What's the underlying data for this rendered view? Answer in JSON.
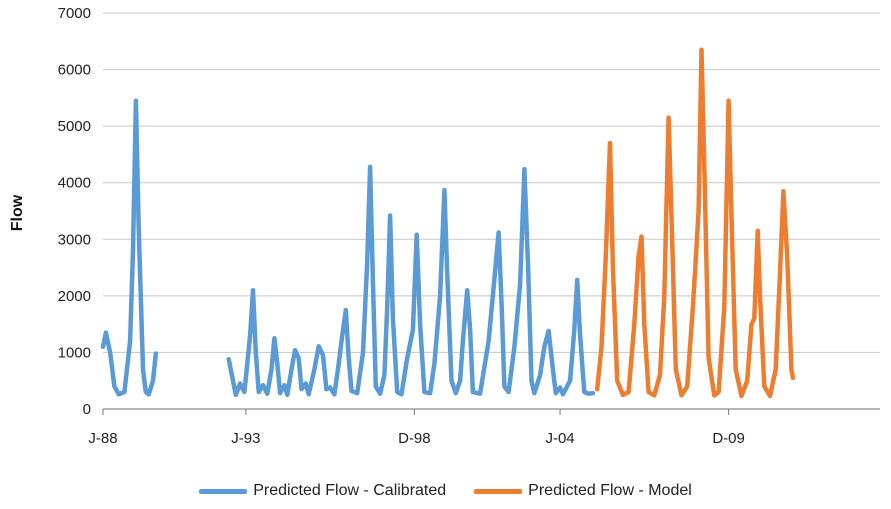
{
  "chart_data": {
    "type": "line",
    "title": "",
    "xlabel": "",
    "ylabel": "Flow",
    "ylim": [
      0,
      7000
    ],
    "yticks": [
      0,
      1000,
      2000,
      3000,
      4000,
      5000,
      6000,
      7000
    ],
    "xlim": [
      1988.0,
      2015.2
    ],
    "xticks": [
      {
        "label": "J-88",
        "x": 1988.0
      },
      {
        "label": "J-93",
        "x": 1993.0
      },
      {
        "label": "D-98",
        "x": 1998.9
      },
      {
        "label": "J-04",
        "x": 2004.0
      },
      {
        "label": "D-09",
        "x": 2009.9
      }
    ],
    "grid": "horizontal",
    "legend_position": "bottom",
    "series": [
      {
        "name": "Predicted Flow - Calibrated",
        "color": "#5b9bd5",
        "segments": [
          [
            [
              1988.0,
              1100
            ],
            [
              1988.1,
              1350
            ],
            [
              1988.25,
              1000
            ],
            [
              1988.4,
              400
            ],
            [
              1988.55,
              260
            ],
            [
              1988.75,
              300
            ],
            [
              1988.95,
              1200
            ],
            [
              1989.05,
              2800
            ],
            [
              1989.15,
              5450
            ],
            [
              1989.25,
              3200
            ],
            [
              1989.4,
              700
            ],
            [
              1989.5,
              300
            ],
            [
              1989.6,
              260
            ],
            [
              1989.75,
              500
            ],
            [
              1989.85,
              980
            ]
          ],
          [
            [
              1992.4,
              880
            ],
            [
              1992.55,
              500
            ],
            [
              1992.65,
              250
            ],
            [
              1992.8,
              450
            ],
            [
              1992.95,
              300
            ],
            [
              1993.05,
              800
            ],
            [
              1993.15,
              1300
            ],
            [
              1993.25,
              2100
            ],
            [
              1993.35,
              1000
            ],
            [
              1993.45,
              300
            ],
            [
              1993.6,
              420
            ],
            [
              1993.75,
              270
            ],
            [
              1993.9,
              700
            ],
            [
              1994.0,
              1250
            ],
            [
              1994.1,
              800
            ],
            [
              1994.2,
              280
            ],
            [
              1994.35,
              420
            ],
            [
              1994.45,
              250
            ],
            [
              1994.6,
              700
            ],
            [
              1994.72,
              1040
            ],
            [
              1994.85,
              900
            ],
            [
              1994.95,
              350
            ],
            [
              1995.1,
              450
            ],
            [
              1995.2,
              260
            ],
            [
              1995.4,
              700
            ],
            [
              1995.55,
              1110
            ],
            [
              1995.7,
              950
            ],
            [
              1995.82,
              350
            ],
            [
              1995.95,
              380
            ],
            [
              1996.1,
              260
            ],
            [
              1996.25,
              800
            ],
            [
              1996.35,
              1200
            ],
            [
              1996.5,
              1750
            ],
            [
              1996.6,
              900
            ],
            [
              1996.7,
              320
            ],
            [
              1996.9,
              280
            ],
            [
              1997.1,
              1000
            ],
            [
              1997.25,
              2600
            ],
            [
              1997.35,
              4280
            ],
            [
              1997.45,
              2200
            ],
            [
              1997.55,
              400
            ],
            [
              1997.7,
              270
            ],
            [
              1997.85,
              600
            ],
            [
              1997.95,
              1800
            ],
            [
              1998.05,
              3420
            ],
            [
              1998.15,
              1600
            ],
            [
              1998.3,
              300
            ],
            [
              1998.45,
              260
            ],
            [
              1998.65,
              900
            ],
            [
              1998.85,
              1400
            ],
            [
              1998.98,
              3080
            ],
            [
              1999.1,
              1500
            ],
            [
              1999.25,
              300
            ],
            [
              1999.45,
              280
            ],
            [
              1999.6,
              800
            ],
            [
              1999.8,
              2000
            ],
            [
              1999.95,
              3870
            ],
            [
              2000.05,
              2400
            ],
            [
              2000.2,
              500
            ],
            [
              2000.35,
              280
            ],
            [
              2000.5,
              500
            ],
            [
              2000.6,
              1200
            ],
            [
              2000.75,
              2100
            ],
            [
              2000.85,
              1400
            ],
            [
              2000.95,
              300
            ],
            [
              2001.2,
              270
            ],
            [
              2001.5,
              1200
            ],
            [
              2001.7,
              2300
            ],
            [
              2001.85,
              3120
            ],
            [
              2001.95,
              1900
            ],
            [
              2002.05,
              400
            ],
            [
              2002.2,
              300
            ],
            [
              2002.4,
              1100
            ],
            [
              2002.6,
              2200
            ],
            [
              2002.75,
              4240
            ],
            [
              2002.88,
              2500
            ],
            [
              2003.0,
              500
            ],
            [
              2003.1,
              280
            ],
            [
              2003.3,
              600
            ],
            [
              2003.45,
              1100
            ],
            [
              2003.6,
              1380
            ],
            [
              2003.75,
              700
            ],
            [
              2003.85,
              280
            ],
            [
              2004.0,
              380
            ],
            [
              2004.1,
              260
            ],
            [
              2004.35,
              500
            ],
            [
              2004.5,
              1400
            ],
            [
              2004.6,
              2280
            ],
            [
              2004.7,
              1300
            ],
            [
              2004.85,
              300
            ],
            [
              2005.0,
              270
            ],
            [
              2005.15,
              280
            ]
          ]
        ]
      },
      {
        "name": "Predicted Flow - Model",
        "color": "#ed7d31",
        "segments": [
          [
            [
              2005.3,
              350
            ],
            [
              2005.45,
              1100
            ],
            [
              2005.6,
              2700
            ],
            [
              2005.75,
              4700
            ],
            [
              2005.85,
              2500
            ],
            [
              2006.0,
              500
            ],
            [
              2006.2,
              250
            ],
            [
              2006.4,
              300
            ],
            [
              2006.6,
              1500
            ],
            [
              2006.75,
              2700
            ],
            [
              2006.85,
              3050
            ],
            [
              2006.95,
              1500
            ],
            [
              2007.1,
              300
            ],
            [
              2007.3,
              240
            ],
            [
              2007.5,
              600
            ],
            [
              2007.65,
              2000
            ],
            [
              2007.8,
              5150
            ],
            [
              2007.9,
              3400
            ],
            [
              2008.05,
              700
            ],
            [
              2008.25,
              240
            ],
            [
              2008.45,
              400
            ],
            [
              2008.65,
              1800
            ],
            [
              2008.85,
              3500
            ],
            [
              2008.95,
              6350
            ],
            [
              2009.05,
              4300
            ],
            [
              2009.2,
              900
            ],
            [
              2009.4,
              240
            ],
            [
              2009.55,
              300
            ],
            [
              2009.75,
              1800
            ],
            [
              2009.9,
              5450
            ],
            [
              2010.0,
              3400
            ],
            [
              2010.15,
              700
            ],
            [
              2010.35,
              230
            ],
            [
              2010.55,
              500
            ],
            [
              2010.7,
              1500
            ],
            [
              2010.8,
              1600
            ],
            [
              2010.92,
              3150
            ],
            [
              2011.0,
              2000
            ],
            [
              2011.15,
              400
            ],
            [
              2011.35,
              230
            ],
            [
              2011.55,
              700
            ],
            [
              2011.7,
              2400
            ],
            [
              2011.82,
              3850
            ],
            [
              2011.95,
              2700
            ],
            [
              2012.1,
              700
            ],
            [
              2012.15,
              550
            ]
          ]
        ]
      }
    ]
  }
}
